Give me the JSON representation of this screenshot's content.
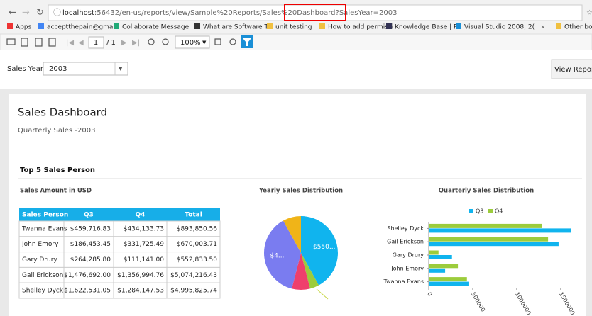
{
  "browser": {
    "url_host": "localhost",
    "url_path": ":56432/en-us/reports/view/Sample%20Reports/Sales%20Dashboard",
    "url_query": "?SalesYear=2003",
    "bookmarks": [
      "Apps",
      "acceptthepain@gmai",
      "Collaborate Message",
      "What are Software Te",
      "unit testing",
      "How to add permissi",
      "Knowledge Base | Re",
      "Visual Studio 2008, 2(",
      "»",
      "Other bool"
    ]
  },
  "toolbar": {
    "page": "1",
    "pages": "/ 1",
    "zoom": "100%"
  },
  "parameters": {
    "label": "Sales Year",
    "value": "2003",
    "button": "View Report"
  },
  "report": {
    "title": "Sales Dashboard",
    "subtitle": "Quarterly Sales -",
    "year": "2003",
    "section": "Top 5 Sales Person"
  },
  "table": {
    "title": "Sales Amount in USD",
    "columns": [
      "Sales Person",
      "Q3",
      "Q4",
      "Total"
    ],
    "rows": [
      [
        "Twanna Evans",
        "$459,716.83",
        "$434,133.73",
        "$893,850.56"
      ],
      [
        "John Emory",
        "$186,453.45",
        "$331,725.49",
        "$670,003.71"
      ],
      [
        "Gary Drury",
        "$264,285.80",
        "$111,141.00",
        "$552,833.50"
      ],
      [
        "Gail Erickson",
        "$1,476,692.00",
        "$1,356,994.76",
        "$5,074,216.43"
      ],
      [
        "Shelley Dyck",
        "$1,622,531.05",
        "$1,284,147.53",
        "$4,995,825.74"
      ]
    ]
  },
  "pie": {
    "type": "pie",
    "title": "Yearly Sales Distribution",
    "slices": [
      {
        "value": 42,
        "color": "#10b4ee",
        "label": "$550..."
      },
      {
        "value": 4,
        "color": "#9ccc3c"
      },
      {
        "value": 8,
        "color": "#ef3f6c"
      },
      {
        "value": 38,
        "color": "#7a7cf0",
        "label": "$4..."
      },
      {
        "value": 8,
        "color": "#f0b418"
      }
    ]
  },
  "bar": {
    "type": "bar",
    "title": "Quarterly Sales Distribution",
    "categories": [
      "Shelley Dyck",
      "Gail Erickson",
      "Gary Drury",
      "John Emory",
      "Twanna Evans"
    ],
    "series": [
      {
        "name": "Q3",
        "color": "#10b4ee",
        "values": [
          1622531.05,
          1476692.0,
          264285.8,
          186453.45,
          459716.83
        ]
      },
      {
        "name": "Q4",
        "color": "#9ccc3c",
        "values": [
          1284147.53,
          1356994.76,
          111141.0,
          331725.49,
          434133.73
        ]
      }
    ],
    "xlim": [
      0,
      1650000
    ],
    "xticks": [
      0,
      500000,
      1000000,
      1500000
    ]
  }
}
